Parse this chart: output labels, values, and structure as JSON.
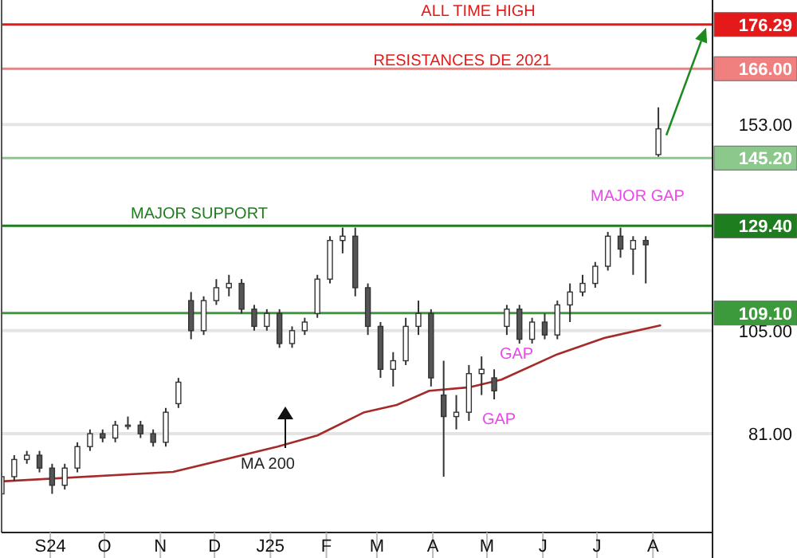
{
  "chart_data": {
    "type": "candlestick",
    "x": [
      "2024-08-05",
      "2024-08-12",
      "2024-08-19",
      "2024-08-26",
      "2024-09-02",
      "2024-09-09",
      "2024-09-16",
      "2024-09-23",
      "2024-09-30",
      "2024-10-07",
      "2024-10-14",
      "2024-10-21",
      "2024-10-28",
      "2024-11-04",
      "2024-11-11",
      "2024-11-18",
      "2024-11-25",
      "2024-12-02",
      "2024-12-09",
      "2024-12-16",
      "2024-12-23",
      "2024-12-30",
      "2025-01-06",
      "2025-01-13",
      "2025-01-20",
      "2025-01-27",
      "2025-02-03",
      "2025-02-10",
      "2025-02-17",
      "2025-02-24",
      "2025-03-03",
      "2025-03-10",
      "2025-03-17",
      "2025-03-24",
      "2025-03-31",
      "2025-04-07",
      "2025-04-14",
      "2025-04-21",
      "2025-04-28",
      "2025-05-05",
      "2025-05-12",
      "2025-05-19",
      "2025-05-26",
      "2025-06-02",
      "2025-06-09",
      "2025-06-16",
      "2025-06-23",
      "2025-06-30",
      "2025-07-07",
      "2025-07-14",
      "2025-07-21",
      "2025-07-28",
      "2025-08-04"
    ],
    "ohlc": [
      [
        67,
        72,
        66,
        71
      ],
      [
        71,
        76,
        70,
        75
      ],
      [
        75,
        77,
        74,
        76
      ],
      [
        76,
        77,
        72,
        73
      ],
      [
        73,
        74,
        67,
        69
      ],
      [
        69,
        74,
        68,
        73
      ],
      [
        73,
        79,
        72,
        78
      ],
      [
        78,
        82,
        77,
        81
      ],
      [
        81,
        82,
        79,
        80
      ],
      [
        80,
        84,
        79,
        83
      ],
      [
        83,
        85,
        82,
        83
      ],
      [
        83,
        84,
        80,
        81
      ],
      [
        81,
        82,
        78,
        79
      ],
      [
        79,
        87,
        78,
        86
      ],
      [
        88,
        94,
        87,
        93
      ],
      [
        112,
        114,
        103,
        105
      ],
      [
        105,
        113,
        104,
        112
      ],
      [
        112,
        117,
        111,
        115
      ],
      [
        115,
        118,
        113,
        116
      ],
      [
        116,
        117,
        109,
        110
      ],
      [
        110,
        111,
        105,
        106
      ],
      [
        106,
        110,
        105,
        109
      ],
      [
        109,
        110,
        101,
        102
      ],
      [
        102,
        106,
        101,
        105
      ],
      [
        105,
        108,
        104,
        107
      ],
      [
        109,
        118,
        108,
        117
      ],
      [
        117,
        127,
        116,
        126
      ],
      [
        126,
        129,
        123,
        127
      ],
      [
        127,
        129,
        113,
        115
      ],
      [
        115,
        116,
        104,
        106
      ],
      [
        106,
        107,
        94,
        96
      ],
      [
        96,
        100,
        92,
        98
      ],
      [
        98,
        108,
        97,
        106
      ],
      [
        106,
        112,
        104,
        109
      ],
      [
        109,
        110,
        92,
        94
      ],
      [
        90,
        98,
        71,
        85
      ],
      [
        85,
        90,
        82,
        86
      ],
      [
        86,
        97,
        84,
        95
      ],
      [
        95,
        99,
        90,
        96
      ],
      [
        94,
        96,
        89,
        91
      ],
      [
        106,
        111,
        104,
        110
      ],
      [
        110,
        111,
        102,
        103
      ],
      [
        103,
        108,
        102,
        107
      ],
      [
        107,
        109,
        103,
        104
      ],
      [
        104,
        112,
        103,
        111
      ],
      [
        111,
        116,
        107,
        114
      ],
      [
        114,
        118,
        113,
        116
      ],
      [
        116,
        121,
        115,
        120
      ],
      [
        120,
        128,
        119,
        127
      ],
      [
        127,
        129,
        122,
        124
      ],
      [
        124,
        127,
        118,
        126
      ],
      [
        126,
        127,
        116,
        125
      ],
      [
        146,
        157,
        145.5,
        152
      ]
    ],
    "series": [
      {
        "type": "line",
        "color": "#a52a2a",
        "x": [
          "2024-08-05",
          "2024-11-08",
          "2025-01-05",
          "2025-01-27",
          "2025-02-22",
          "2025-03-12",
          "2025-03-30",
          "2025-04-21",
          "2025-05-09",
          "2025-06-09",
          "2025-07-05",
          "2025-08-05"
        ],
        "values": [
          69.9,
          72.1,
          78,
          80.6,
          86,
          87.7,
          91,
          91.8,
          93.6,
          99.5,
          103.3,
          106.2
        ]
      }
    ],
    "xlim": [
      "2024-08-05",
      "2025-09-03"
    ],
    "xticks": [
      {
        "value": "2024-09-01",
        "label": "S24"
      },
      {
        "value": "2024-10-01",
        "label": "O"
      },
      {
        "value": "2024-11-01",
        "label": "N"
      },
      {
        "value": "2024-12-01",
        "label": "D"
      },
      {
        "value": "2025-01-01",
        "label": "J25"
      },
      {
        "value": "2025-02-01",
        "label": "F"
      },
      {
        "value": "2025-03-01",
        "label": "M"
      },
      {
        "value": "2025-04-01",
        "label": "A"
      },
      {
        "value": "2025-05-01",
        "label": "M"
      },
      {
        "value": "2025-06-01",
        "label": "J"
      },
      {
        "value": "2025-07-01",
        "label": "J"
      },
      {
        "value": "2025-08-01",
        "label": "A"
      }
    ],
    "ylim": [
      58,
      182
    ],
    "yticks": [
      {
        "value": 81,
        "label": "81.00"
      },
      {
        "value": 105,
        "label": "105.00"
      },
      {
        "value": 153,
        "label": "153.00"
      }
    ],
    "grid": "y",
    "ref_lines": [
      {
        "axis": "y",
        "value": 176.29,
        "label": "176.29",
        "color": "#e41a1a"
      },
      {
        "axis": "y",
        "value": 166,
        "label": "166.00",
        "color": "#f08080"
      },
      {
        "axis": "y",
        "value": 145.2,
        "label": "145.20",
        "color": "#8cc88c"
      },
      {
        "axis": "y",
        "value": 129.4,
        "label": "129.40",
        "color": "#1e7d1e"
      },
      {
        "axis": "y",
        "value": 109.1,
        "label": "109.10",
        "color": "#3c9a3c"
      }
    ],
    "annotations": [
      "ALL TIME HIGH",
      "RESISTANCES DE 2021",
      "MAJOR SUPPORT",
      "MAJOR GAP",
      "GAP",
      "GAP",
      "MA 200"
    ]
  }
}
